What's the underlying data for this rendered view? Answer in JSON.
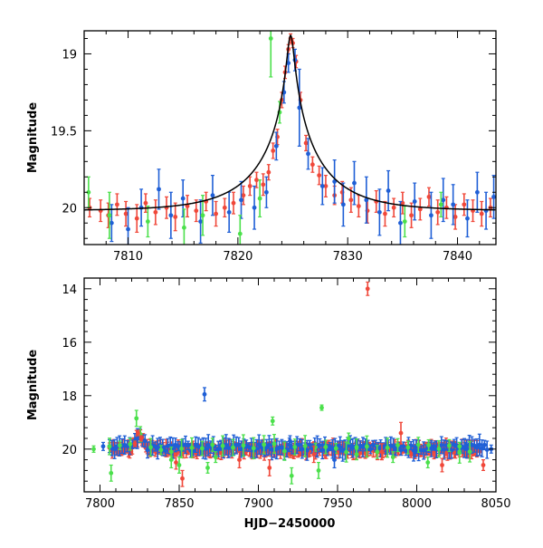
{
  "colors": {
    "red": "#f0483a",
    "blue": "#1f5fd6",
    "green": "#4be04b",
    "model": "#000000"
  },
  "chart_data": [
    {
      "type": "scatter",
      "xlabel": "",
      "ylabel": "Magnitude",
      "xlim": [
        7806,
        7843.5
      ],
      "ylim": [
        20.24,
        18.85
      ],
      "y_inverted": true,
      "x_ticks": [
        7810,
        7820,
        7830,
        7840
      ],
      "y_ticks": [
        19,
        19.5,
        20
      ],
      "model_curve": {
        "t0": 7824.8,
        "baseline": 20.02,
        "peak_magnitude": 18.88,
        "u0": 0.05,
        "tE": 6
      },
      "series": [
        {
          "color": "red",
          "points": [
            [
              7806.5,
              20.0,
              0.06
            ],
            [
              7807.5,
              20.02,
              0.07
            ],
            [
              7808.2,
              20.05,
              0.08
            ],
            [
              7809.0,
              19.98,
              0.07
            ],
            [
              7809.8,
              20.04,
              0.08
            ],
            [
              7810.8,
              20.07,
              0.09
            ],
            [
              7811.6,
              19.97,
              0.06
            ],
            [
              7812.5,
              20.03,
              0.08
            ],
            [
              7813.5,
              20.0,
              0.07
            ],
            [
              7814.3,
              20.06,
              0.09
            ],
            [
              7815.4,
              19.99,
              0.07
            ],
            [
              7816.2,
              20.02,
              0.07
            ],
            [
              7817.1,
              19.96,
              0.06
            ],
            [
              7818.0,
              20.04,
              0.08
            ],
            [
              7818.8,
              20.0,
              0.06
            ],
            [
              7819.6,
              19.97,
              0.07
            ],
            [
              7820.5,
              19.92,
              0.06
            ],
            [
              7821.1,
              19.86,
              0.06
            ],
            [
              7821.7,
              19.82,
              0.05
            ],
            [
              7822.3,
              19.85,
              0.07
            ],
            [
              7822.8,
              19.77,
              0.05
            ],
            [
              7823.2,
              19.63,
              0.05
            ],
            [
              7823.6,
              19.54,
              0.05
            ],
            [
              7824.0,
              19.3,
              0.05
            ],
            [
              7824.3,
              19.12,
              0.04
            ],
            [
              7824.6,
              18.97,
              0.03
            ],
            [
              7824.8,
              18.9,
              0.03
            ],
            [
              7825.0,
              18.93,
              0.03
            ],
            [
              7825.3,
              19.05,
              0.04
            ],
            [
              7825.7,
              19.3,
              0.05
            ],
            [
              7826.2,
              19.58,
              0.05
            ],
            [
              7826.8,
              19.72,
              0.05
            ],
            [
              7827.4,
              19.79,
              0.06
            ],
            [
              7828.0,
              19.86,
              0.07
            ],
            [
              7828.8,
              19.92,
              0.06
            ],
            [
              7829.5,
              19.9,
              0.07
            ],
            [
              7830.3,
              19.95,
              0.08
            ],
            [
              7831.0,
              19.99,
              0.07
            ],
            [
              7831.8,
              20.02,
              0.08
            ],
            [
              7832.6,
              19.96,
              0.07
            ],
            [
              7833.4,
              20.04,
              0.08
            ],
            [
              7834.2,
              20.0,
              0.06
            ],
            [
              7835.0,
              19.97,
              0.07
            ],
            [
              7835.8,
              20.05,
              0.08
            ],
            [
              7836.6,
              20.01,
              0.07
            ],
            [
              7837.4,
              19.93,
              0.06
            ],
            [
              7838.2,
              20.03,
              0.08
            ],
            [
              7839.0,
              20.0,
              0.07
            ],
            [
              7839.8,
              20.06,
              0.08
            ],
            [
              7840.6,
              19.98,
              0.07
            ],
            [
              7841.4,
              20.02,
              0.07
            ],
            [
              7842.2,
              20.04,
              0.08
            ],
            [
              7843.0,
              20.0,
              0.06
            ]
          ]
        },
        {
          "color": "blue",
          "points": [
            [
              7808.5,
              20.1,
              0.12
            ],
            [
              7810.0,
              20.14,
              0.14
            ],
            [
              7811.2,
              20.0,
              0.12
            ],
            [
              7812.8,
              19.88,
              0.13
            ],
            [
              7813.9,
              20.05,
              0.15
            ],
            [
              7815.0,
              19.94,
              0.12
            ],
            [
              7816.6,
              20.09,
              0.14
            ],
            [
              7817.7,
              19.92,
              0.13
            ],
            [
              7819.2,
              20.03,
              0.13
            ],
            [
              7820.3,
              19.95,
              0.12
            ],
            [
              7821.5,
              20.0,
              0.14
            ],
            [
              7822.6,
              19.9,
              0.1
            ],
            [
              7823.5,
              19.6,
              0.09
            ],
            [
              7824.2,
              19.25,
              0.07
            ],
            [
              7824.6,
              19.06,
              0.06
            ],
            [
              7825.2,
              19.04,
              0.07
            ],
            [
              7825.6,
              19.35,
              0.25
            ],
            [
              7826.4,
              19.65,
              0.1
            ],
            [
              7827.7,
              19.86,
              0.12
            ],
            [
              7828.8,
              19.83,
              0.14
            ],
            [
              7829.6,
              19.98,
              0.14
            ],
            [
              7830.6,
              19.84,
              0.14
            ],
            [
              7831.7,
              19.95,
              0.15
            ],
            [
              7832.9,
              20.03,
              0.15
            ],
            [
              7833.7,
              19.89,
              0.13
            ],
            [
              7834.8,
              20.1,
              0.14
            ],
            [
              7836.1,
              19.96,
              0.12
            ],
            [
              7837.6,
              20.05,
              0.15
            ],
            [
              7838.7,
              19.95,
              0.14
            ],
            [
              7839.6,
              19.98,
              0.13
            ],
            [
              7840.9,
              20.07,
              0.12
            ],
            [
              7841.8,
              19.9,
              0.13
            ],
            [
              7842.6,
              20.02,
              0.12
            ],
            [
              7843.3,
              19.93,
              0.14
            ]
          ]
        },
        {
          "color": "green",
          "points": [
            [
              7806.4,
              19.9,
              0.1
            ],
            [
              7808.3,
              20.05,
              0.15
            ],
            [
              7811.8,
              20.09,
              0.1
            ],
            [
              7815.1,
              20.13,
              0.12
            ],
            [
              7816.8,
              20.05,
              0.13
            ],
            [
              7820.2,
              20.17,
              0.12
            ],
            [
              7822.0,
              19.94,
              0.12
            ],
            [
              7823.0,
              18.9,
              0.25
            ],
            [
              7823.8,
              19.38,
              0.07
            ],
            [
              7835.2,
              20.09,
              0.1
            ],
            [
              7838.5,
              19.98,
              0.08
            ]
          ]
        }
      ]
    },
    {
      "type": "scatter",
      "xlabel": "HJD−2450000",
      "ylabel": "Magnitude",
      "xlim": [
        7790,
        8050
      ],
      "ylim": [
        21.6,
        13.6
      ],
      "y_inverted": true,
      "x_ticks": [
        7800,
        7850,
        7900,
        7950,
        8000,
        8050
      ],
      "y_ticks": [
        14,
        16,
        18,
        20
      ],
      "baseline_magnitude": 20.0,
      "event_peak_time": 7824.8,
      "series": [
        {
          "color": "red",
          "points": [
            [
              7969,
              14.0,
              0.25
            ],
            [
              7990,
              19.4,
              0.4
            ],
            [
              7848,
              20.5,
              0.25
            ],
            [
              7852,
              21.1,
              0.3
            ],
            [
              7907,
              20.7,
              0.3
            ],
            [
              7978,
              20.1,
              0.3
            ],
            [
              8016,
              20.6,
              0.25
            ],
            [
              8042,
              20.6,
              0.2
            ],
            [
              7888,
              20.4,
              0.3
            ],
            [
              7935,
              20.2,
              0.3
            ],
            [
              7824,
              19.4,
              0.1
            ],
            [
              7826,
              19.6,
              0.1
            ],
            [
              7822,
              19.8,
              0.1
            ]
          ]
        },
        {
          "color": "blue",
          "points": [
            [
              7866,
              17.95,
              0.25
            ],
            [
              7802,
              19.9,
              0.15
            ],
            [
              7920,
              19.7,
              0.2
            ],
            [
              7958,
              19.85,
              0.2
            ],
            [
              7999,
              20.1,
              0.2
            ],
            [
              7948,
              20.4,
              0.3
            ],
            [
              8031,
              19.9,
              0.15
            ],
            [
              8047,
              20.0,
              0.15
            ]
          ]
        },
        {
          "color": "green",
          "points": [
            [
              7796,
              20.0,
              0.12
            ],
            [
              7807,
              20.9,
              0.3
            ],
            [
              7823,
              18.85,
              0.3
            ],
            [
              7845,
              20.4,
              0.3
            ],
            [
              7850,
              20.6,
              0.3
            ],
            [
              7868,
              20.7,
              0.2
            ],
            [
              7909,
              18.95,
              0.15
            ],
            [
              7940,
              18.45,
              0.1
            ],
            [
              7957,
              19.6,
              0.2
            ],
            [
              7938,
              20.8,
              0.3
            ],
            [
              7921,
              21.0,
              0.3
            ],
            [
              7985,
              20.3,
              0.2
            ],
            [
              8007,
              20.5,
              0.2
            ],
            [
              8027,
              19.9,
              0.15
            ],
            [
              7873,
              20.3,
              0.2
            ],
            [
              7962,
              20.2,
              0.2
            ]
          ]
        }
      ],
      "dense_bands": [
        {
          "color": "red",
          "x_start": 7806,
          "x_end": 8040,
          "step": 0.85,
          "base": 20.0,
          "scatter": 0.1,
          "err_min": 0.12,
          "err_max": 0.33,
          "seed": 11
        },
        {
          "color": "blue",
          "x_start": 7806,
          "x_end": 8045,
          "step": 1.6,
          "base": 19.95,
          "scatter": 0.12,
          "err_min": 0.15,
          "err_max": 0.4,
          "seed": 23
        },
        {
          "color": "green",
          "x_start": 7806,
          "x_end": 8035,
          "step": 6.5,
          "base": 20.0,
          "scatter": 0.2,
          "err_min": 0.15,
          "err_max": 0.4,
          "seed": 37
        }
      ]
    }
  ]
}
